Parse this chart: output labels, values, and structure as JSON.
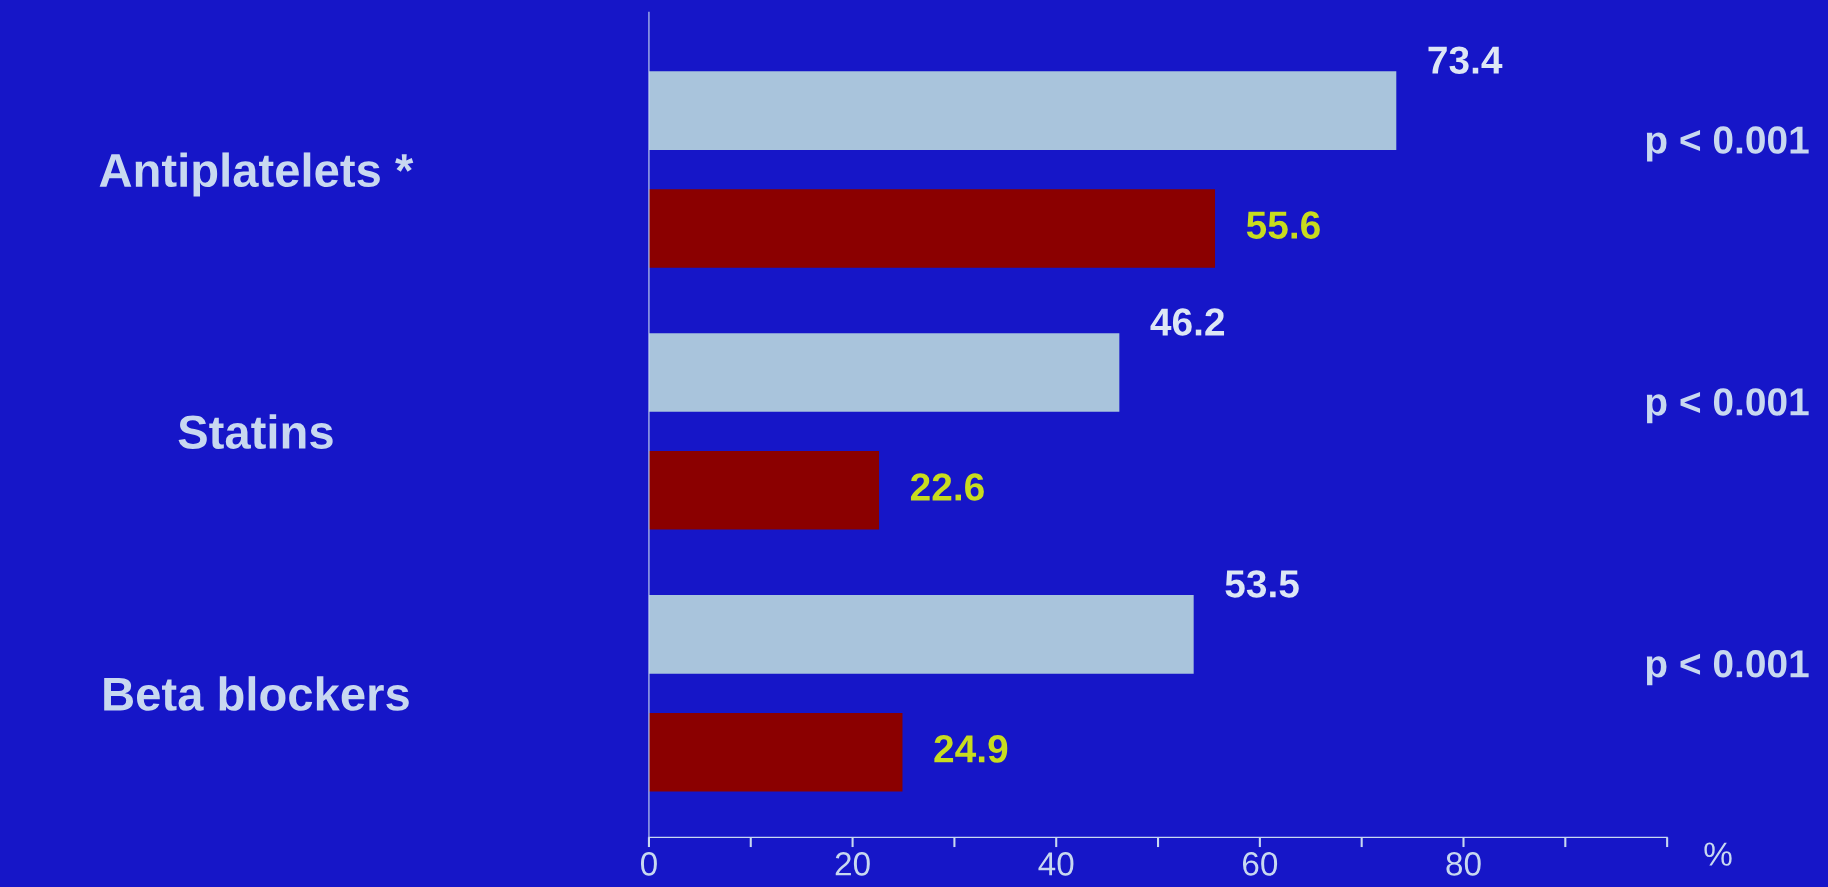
{
  "chart_data": {
    "type": "bar",
    "orientation": "horizontal",
    "categories": [
      "Antiplatelets *",
      "Statins",
      "Beta blockers"
    ],
    "series": [
      {
        "color": "#a9c4dc",
        "values": [
          73.4,
          46.2,
          53.5
        ]
      },
      {
        "color": "#8b0000",
        "values": [
          55.6,
          22.6,
          24.9
        ]
      }
    ],
    "data_labels": true,
    "xlabel": "%",
    "xlim": [
      0,
      100
    ],
    "xticks": [
      0,
      {
        "value": 10,
        "label": null
      },
      20,
      {
        "value": 30,
        "label": null
      },
      40,
      {
        "value": 50,
        "label": null
      },
      60,
      {
        "value": 70,
        "label": null
      },
      80,
      {
        "value": 90,
        "label": null
      },
      {
        "value": 100,
        "label": null
      }
    ],
    "annotations": [
      "p < 0.001",
      "p < 0.001",
      "p < 0.001"
    ],
    "grid": false,
    "legend": false
  }
}
